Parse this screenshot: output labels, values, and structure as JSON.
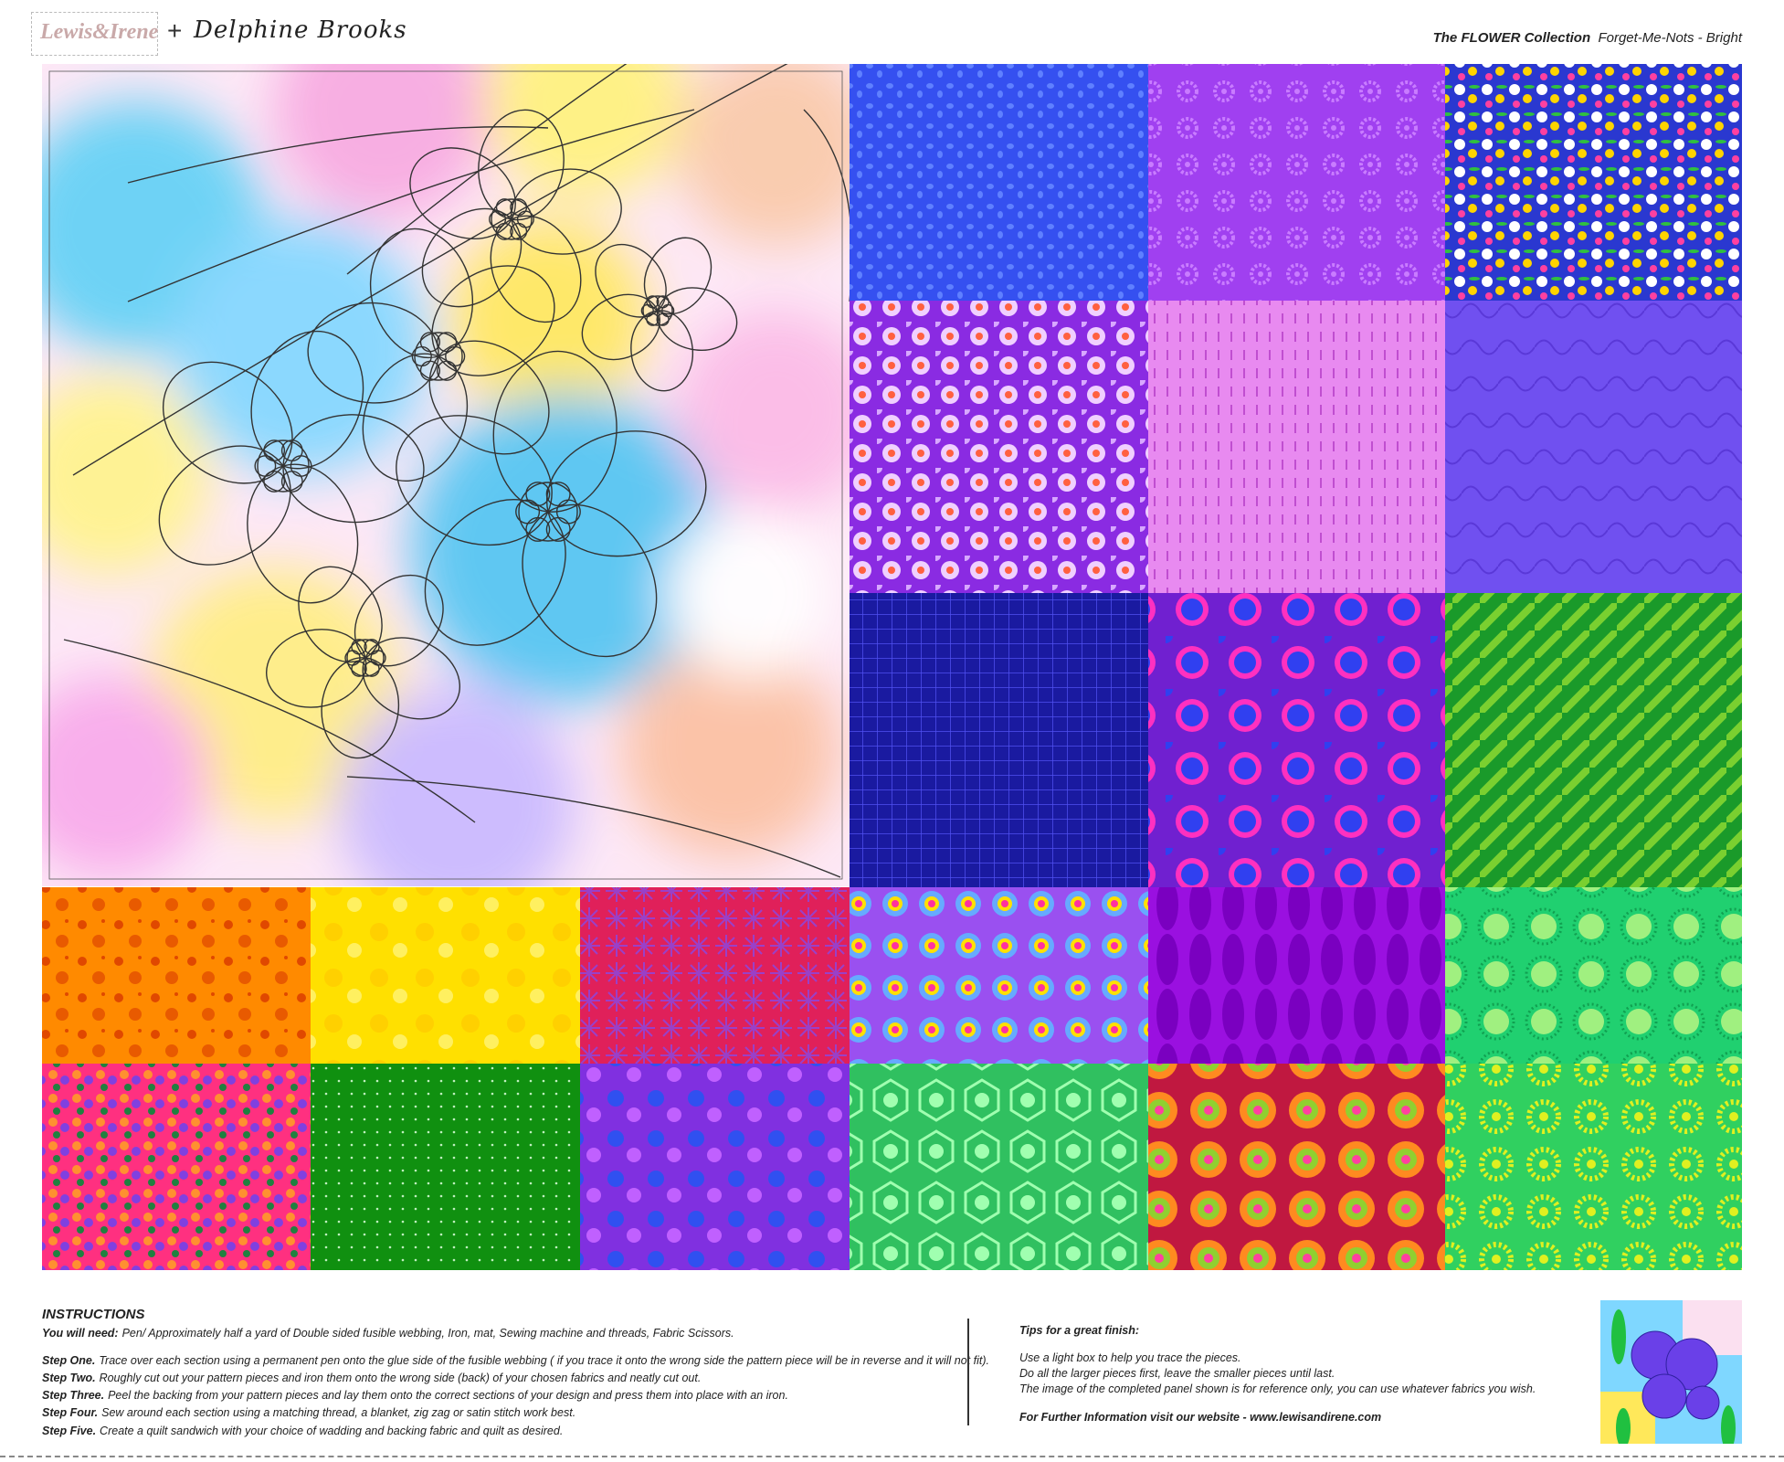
{
  "header": {
    "brand": "Lewis&Irene",
    "joiner": "+",
    "designer": "Delphine Brooks",
    "collection": "The FLOWER Collection",
    "panel": "Forget-Me-Nots - Bright"
  },
  "instructions": {
    "title": "INSTRUCTIONS",
    "need": {
      "label": "You will need:",
      "text": "Pen/ Approximately half a yard of Double sided fusible webbing, Iron, mat, Sewing machine and threads, Fabric Scissors."
    },
    "steps": [
      {
        "label": "Step One.",
        "text": "Trace over each section using a permanent pen onto the glue side of the fusible webbing ( if you trace it onto the wrong side the pattern piece will be in reverse and it will not fit)."
      },
      {
        "label": "Step Two.",
        "text": "Roughly cut out your pattern pieces and iron them onto the wrong side (back) of your chosen fabrics and neatly cut out."
      },
      {
        "label": "Step Three.",
        "text": "Peel the backing from your pattern pieces and lay them onto the correct sections of your design and press them into place with an iron."
      },
      {
        "label": "Step Four.",
        "text": "Sew around each section using a matching thread, a blanket, zig zag or satin stitch work best."
      },
      {
        "label": "Step Five.",
        "text": "Create a quilt sandwich with your choice of wadding and backing fabric and quilt as desired."
      }
    ]
  },
  "tips": {
    "title": "Tips for a great finish:",
    "lines": [
      "Use a light box to help you trace the pieces.",
      "Do all the larger pieces first, leave the smaller pieces until last.",
      "The image of the completed panel shown is for reference only, you can use whatever fabrics you wish."
    ],
    "website": "For Further Information visit our website - www.lewisandirene.com"
  }
}
